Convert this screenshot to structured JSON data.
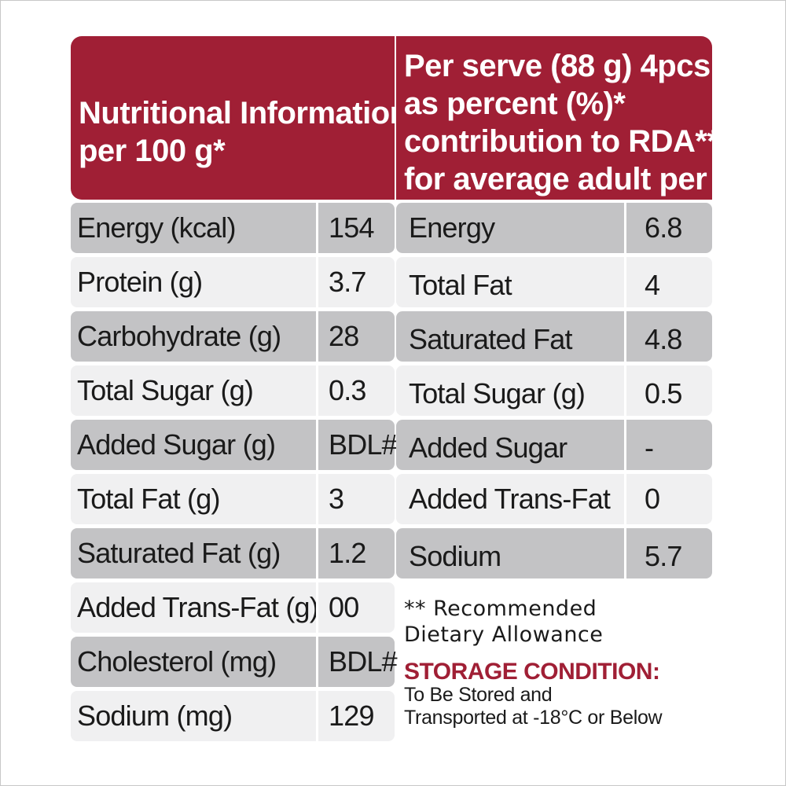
{
  "header": {
    "left_lines": [
      "Nutritional Information",
      "per 100 g*"
    ],
    "right_lines": [
      "Per serve (88 g) 4pcs",
      "as percent (%)*",
      "contribution to RDA**",
      "for average adult per day"
    ]
  },
  "per_100g": [
    {
      "nutrient": "Energy (kcal)",
      "value": "154"
    },
    {
      "nutrient": "Protein (g)",
      "value": "3.7"
    },
    {
      "nutrient": "Carbohydrate (g)",
      "value": "28"
    },
    {
      "nutrient": "Total Sugar (g)",
      "value": "0.3"
    },
    {
      "nutrient": "Added Sugar (g)",
      "value": "BDL#"
    },
    {
      "nutrient": "Total Fat (g)",
      "value": "3"
    },
    {
      "nutrient": "Saturated Fat (g)",
      "value": "1.2"
    },
    {
      "nutrient": "Added Trans-Fat (g)",
      "value": "00"
    },
    {
      "nutrient": "Cholesterol (mg)",
      "value": "BDL#"
    },
    {
      "nutrient": "Sodium (mg)",
      "value": "129"
    }
  ],
  "rda": [
    {
      "nutrient": "Energy",
      "value": "6.8"
    },
    {
      "nutrient": "Total Fat",
      "value": "4"
    },
    {
      "nutrient": "Saturated Fat",
      "value": "4.8"
    },
    {
      "nutrient": "Total Sugar (g)",
      "value": "0.5"
    },
    {
      "nutrient": "Added Sugar",
      "value": "-"
    },
    {
      "nutrient": "Added Trans-Fat",
      "value": "0"
    },
    {
      "nutrient": "Sodium",
      "value": "5.7"
    }
  ],
  "footnote_lines": [
    "** Recommended",
    "Dietary Allowance"
  ],
  "storage": {
    "title": "STORAGE CONDITION:",
    "lines": [
      "To Be Stored and",
      "Transported at -18°C or Below"
    ]
  },
  "colors": {
    "header_bg": "#a01f35",
    "row_dark": "#c3c3c5",
    "row_light": "#f0f0f1"
  }
}
